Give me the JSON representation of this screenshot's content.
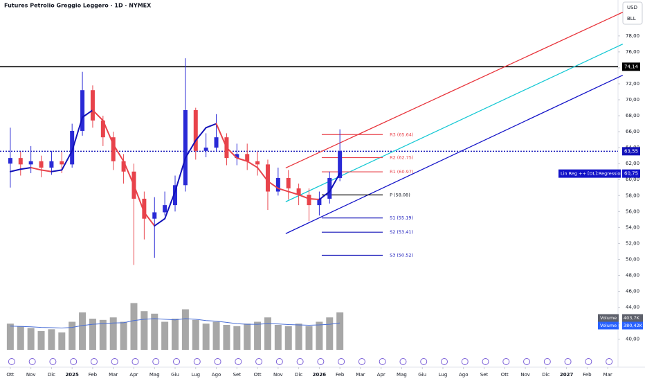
{
  "chart_data": {
    "type": "candlestick",
    "title": "Futures Petrolio Greggio Leggero · 1D · NYMEX",
    "currency": "USD",
    "unit": "BLL",
    "xlim": [
      -0.5,
      29.5
    ],
    "xticks": [
      {
        "value": 0,
        "label": "Ott"
      },
      {
        "value": 1,
        "label": "Nov"
      },
      {
        "value": 2,
        "label": "Dic"
      },
      {
        "value": 3,
        "label": "2025"
      },
      {
        "value": 4,
        "label": "Feb"
      },
      {
        "value": 5,
        "label": "Mar"
      },
      {
        "value": 6,
        "label": "Apr"
      },
      {
        "value": 7,
        "label": "Mag"
      },
      {
        "value": 8,
        "label": "Giu"
      },
      {
        "value": 9,
        "label": "Lug"
      },
      {
        "value": 10,
        "label": "Ago"
      },
      {
        "value": 11,
        "label": "Set"
      },
      {
        "value": 12,
        "label": "Ott"
      },
      {
        "value": 13,
        "label": "Nov"
      },
      {
        "value": 14,
        "label": "Dic"
      },
      {
        "value": 15,
        "label": "2026"
      },
      {
        "value": 16,
        "label": "Feb"
      },
      {
        "value": 17,
        "label": "Mar"
      },
      {
        "value": 18,
        "label": "Apr"
      },
      {
        "value": 19,
        "label": "Mag"
      },
      {
        "value": 20,
        "label": "Giu"
      },
      {
        "value": 21,
        "label": "Lug"
      },
      {
        "value": 22,
        "label": "Ago"
      },
      {
        "value": 23,
        "label": "Set"
      },
      {
        "value": 24,
        "label": "Ott"
      },
      {
        "value": 25,
        "label": "Nov"
      },
      {
        "value": 26,
        "label": "Dic"
      },
      {
        "value": 27,
        "label": "2027"
      },
      {
        "value": 28,
        "label": "Feb"
      },
      {
        "value": 29,
        "label": "Mar"
      }
    ],
    "ylim": [
      36.5,
      82.5
    ],
    "yticks": [
      {
        "value": 40,
        "label": "40,00"
      },
      {
        "value": 42,
        "label": "42,00"
      },
      {
        "value": 44,
        "label": "44,00"
      },
      {
        "value": 46,
        "label": "46,00"
      },
      {
        "value": 48,
        "label": "48,00"
      },
      {
        "value": 50,
        "label": "50,00"
      },
      {
        "value": 52,
        "label": "52,00"
      },
      {
        "value": 54,
        "label": "54,00"
      },
      {
        "value": 56,
        "label": "56,00"
      },
      {
        "value": 58,
        "label": "58,00"
      },
      {
        "value": 60,
        "label": "60,00"
      },
      {
        "value": 62,
        "label": "62,00"
      },
      {
        "value": 64,
        "label": "64,00"
      },
      {
        "value": 66,
        "label": "66,00"
      },
      {
        "value": 68,
        "label": "68,00"
      },
      {
        "value": 70,
        "label": "70,00"
      },
      {
        "value": 72,
        "label": "72,00"
      },
      {
        "value": 74,
        "label": "74,00"
      },
      {
        "value": 76,
        "label": "76,00"
      },
      {
        "value": 78,
        "label": "78,00"
      }
    ],
    "up_color": "#2a2ad6",
    "down_color": "#e8434b",
    "x": [
      0,
      0.5,
      1,
      1.5,
      2,
      2.5,
      3,
      3.5,
      4,
      4.5,
      5,
      5.5,
      6,
      6.5,
      7,
      7.5,
      8,
      8.5,
      9,
      9.5,
      10,
      10.5,
      11,
      11.5,
      12,
      12.5,
      13,
      13.5,
      14,
      14.5,
      15,
      15.5,
      16
    ],
    "open": [
      62.0,
      62.7,
      61.9,
      62.3,
      61.5,
      62.3,
      61.9,
      66.1,
      71.2,
      67.4,
      65.3,
      62.3,
      61.0,
      57.6,
      55.1,
      55.9,
      56.8,
      59.3,
      68.7,
      63.6,
      64.0,
      65.3,
      62.7,
      63.2,
      62.3,
      61.9,
      58.5,
      60.2,
      58.9,
      58.1,
      56.8,
      57.6,
      60.2
    ],
    "high": [
      66.5,
      63.5,
      64.2,
      63.0,
      63.6,
      63.5,
      67.0,
      73.5,
      71.8,
      68.0,
      66.0,
      63.2,
      62.0,
      58.5,
      57.8,
      58.5,
      60.5,
      75.2,
      69.0,
      65.8,
      68.2,
      65.8,
      64.5,
      64.5,
      63.5,
      62.5,
      61.5,
      61.2,
      59.5,
      58.9,
      58.5,
      61.0,
      66.3
    ],
    "low": [
      59.0,
      60.5,
      60.8,
      60.3,
      60.6,
      60.8,
      61.5,
      65.5,
      66.5,
      64.2,
      61.2,
      59.5,
      49.3,
      52.5,
      50.2,
      55.5,
      56.0,
      58.5,
      62.5,
      62.8,
      63.5,
      61.8,
      61.8,
      61.2,
      60.5,
      56.2,
      58.0,
      57.5,
      56.8,
      54.8,
      55.5,
      57.0,
      59.8
    ],
    "close": [
      62.7,
      61.9,
      62.3,
      61.5,
      62.3,
      61.9,
      66.1,
      71.2,
      67.4,
      65.3,
      62.3,
      61.0,
      57.6,
      55.1,
      55.9,
      56.8,
      59.3,
      68.7,
      63.6,
      64.0,
      65.3,
      62.7,
      63.2,
      62.3,
      61.9,
      58.5,
      60.2,
      58.9,
      58.1,
      56.8,
      57.6,
      60.2,
      63.6
    ],
    "ma": {
      "up_color": "#1212b8",
      "down_color": "#e8434b",
      "values": [
        61.0,
        61.3,
        61.5,
        61.2,
        61.0,
        61.2,
        63.6,
        67.8,
        68.7,
        67.4,
        64.4,
        62.3,
        59.3,
        55.9,
        54.2,
        55.1,
        58.5,
        62.7,
        64.9,
        66.5,
        67.0,
        64.0,
        62.7,
        62.3,
        61.5,
        59.8,
        58.9,
        58.5,
        58.1,
        57.6,
        57.5,
        58.5,
        60.8
      ]
    },
    "volume": {
      "color": "#8a8a8a",
      "lim": [
        0,
        1200
      ],
      "values": [
        420,
        380,
        350,
        300,
        330,
        280,
        450,
        600,
        500,
        480,
        520,
        450,
        750,
        620,
        580,
        450,
        500,
        650,
        480,
        420,
        450,
        400,
        380,
        420,
        450,
        520,
        400,
        380,
        420,
        380,
        450,
        520,
        600
      ],
      "ma_color": "#4a6fd6",
      "ma_values": [
        380,
        375,
        370,
        360,
        355,
        350,
        360,
        390,
        410,
        420,
        430,
        435,
        470,
        490,
        500,
        490,
        480,
        500,
        490,
        470,
        460,
        440,
        420,
        410,
        410,
        420,
        415,
        405,
        400,
        395,
        400,
        410,
        430
      ],
      "legend": [
        {
          "name": "Volume",
          "value_label": "403,7K"
        },
        {
          "name": "Volume MA",
          "value_label": "380,42K"
        }
      ]
    },
    "hlines": [
      {
        "value": 74.14,
        "label": "74,14",
        "color": "#000000",
        "style": "solid"
      },
      {
        "value": 63.55,
        "label": "63,55",
        "color": "#1212b8",
        "style": "dotted"
      }
    ],
    "pivot_x": [
      15.12,
      18.08
    ],
    "pivots": [
      {
        "label": "R3 (65.64)",
        "value": 65.64,
        "color": "#e8434b"
      },
      {
        "label": "R2 (62.75)",
        "value": 62.75,
        "color": "#e8434b"
      },
      {
        "label": "R1 (60.97)",
        "value": 60.97,
        "color": "#e8434b"
      },
      {
        "label": "P (58.08)",
        "value": 58.08,
        "color": "#000000"
      },
      {
        "label": "S1 (55.19)",
        "value": 55.19,
        "color": "#1212b8"
      },
      {
        "label": "S2 (53.41)",
        "value": 53.41,
        "color": "#1212b8"
      },
      {
        "label": "S3 (50.52)",
        "value": 50.52,
        "color": "#1212b8"
      }
    ],
    "regression": {
      "x": [
        13.37,
        29.73
      ],
      "lines": [
        {
          "color": "#e8343b",
          "values": [
            61.46,
            80.97
          ]
        },
        {
          "color": "#14c8d4",
          "values": [
            57.22,
            76.98
          ]
        },
        {
          "color": "#1414c8",
          "values": [
            53.23,
            73.08
          ]
        }
      ],
      "name": "Lin Reg ++ [DL]:Regression Line",
      "value": 60.75,
      "value_label": "60,75"
    }
  }
}
